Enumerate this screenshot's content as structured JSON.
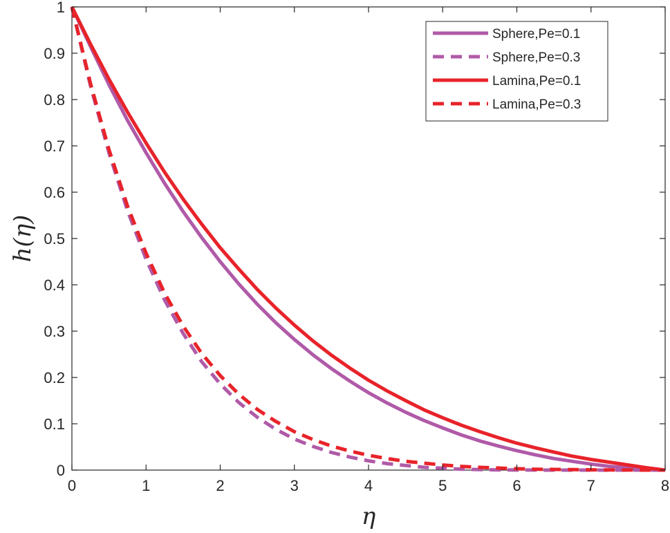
{
  "chart_data": {
    "type": "line",
    "title": "",
    "xlabel": "η",
    "ylabel": "h(η)",
    "xlim": [
      0,
      8
    ],
    "ylim": [
      0,
      1
    ],
    "xticks": [
      0,
      1,
      2,
      3,
      4,
      5,
      6,
      7,
      8
    ],
    "yticks": [
      0,
      0.1,
      0.2,
      0.3,
      0.4,
      0.5,
      0.6,
      0.7,
      0.8,
      0.9,
      1
    ],
    "xtick_labels": [
      "0",
      "1",
      "2",
      "3",
      "4",
      "5",
      "6",
      "7",
      "8"
    ],
    "ytick_labels": [
      "0",
      "0.1",
      "0.2",
      "0.3",
      "0.4",
      "0.5",
      "0.6",
      "0.7",
      "0.8",
      "0.9",
      "1"
    ],
    "grid": false,
    "legend_position": "top-right",
    "x": [
      0,
      0.25,
      0.5,
      0.75,
      1,
      1.25,
      1.5,
      1.75,
      2,
      2.25,
      2.5,
      2.75,
      3,
      3.25,
      3.5,
      3.75,
      4,
      4.25,
      4.5,
      4.75,
      5,
      5.25,
      5.5,
      5.75,
      6,
      6.25,
      6.5,
      6.75,
      7,
      7.25,
      7.5,
      7.75,
      8
    ],
    "series": [
      {
        "name": "Sphere,Pe=0.1",
        "color": "#b05aa8",
        "style": "solid",
        "values": [
          1,
          0.915,
          0.832,
          0.755,
          0.685,
          0.619,
          0.558,
          0.502,
          0.45,
          0.402,
          0.358,
          0.318,
          0.282,
          0.249,
          0.219,
          0.192,
          0.167,
          0.145,
          0.125,
          0.107,
          0.091,
          0.076,
          0.063,
          0.052,
          0.042,
          0.033,
          0.025,
          0.019,
          0.013,
          0.008,
          0.005,
          0.002,
          0
        ]
      },
      {
        "name": "Sphere,Pe=0.3",
        "color": "#b05aa8",
        "style": "dashed",
        "values": [
          1,
          0.83,
          0.685,
          0.56,
          0.455,
          0.367,
          0.295,
          0.234,
          0.186,
          0.146,
          0.114,
          0.088,
          0.067,
          0.051,
          0.038,
          0.028,
          0.02,
          0.014,
          0.01,
          0.006,
          0.004,
          0.002,
          0.001,
          0.0005,
          0.0002,
          0.0001,
          0,
          0,
          0,
          0,
          0,
          0,
          0
        ]
      },
      {
        "name": "Lamina,Pe=0.1",
        "color": "#e8232a",
        "style": "solid",
        "values": [
          1,
          0.92,
          0.844,
          0.773,
          0.706,
          0.643,
          0.585,
          0.531,
          0.48,
          0.434,
          0.39,
          0.35,
          0.313,
          0.279,
          0.248,
          0.22,
          0.194,
          0.171,
          0.15,
          0.13,
          0.113,
          0.097,
          0.083,
          0.07,
          0.058,
          0.048,
          0.039,
          0.03,
          0.023,
          0.017,
          0.011,
          0.005,
          0
        ]
      },
      {
        "name": "Lamina,Pe=0.3",
        "color": "#e8232a",
        "style": "dashed",
        "values": [
          1,
          0.835,
          0.692,
          0.57,
          0.468,
          0.382,
          0.311,
          0.252,
          0.204,
          0.164,
          0.131,
          0.105,
          0.083,
          0.066,
          0.052,
          0.041,
          0.032,
          0.025,
          0.019,
          0.015,
          0.011,
          0.008,
          0.006,
          0.0045,
          0.003,
          0.002,
          0.0015,
          0.001,
          0.0006,
          0.0003,
          0.0001,
          0,
          0
        ]
      }
    ]
  }
}
